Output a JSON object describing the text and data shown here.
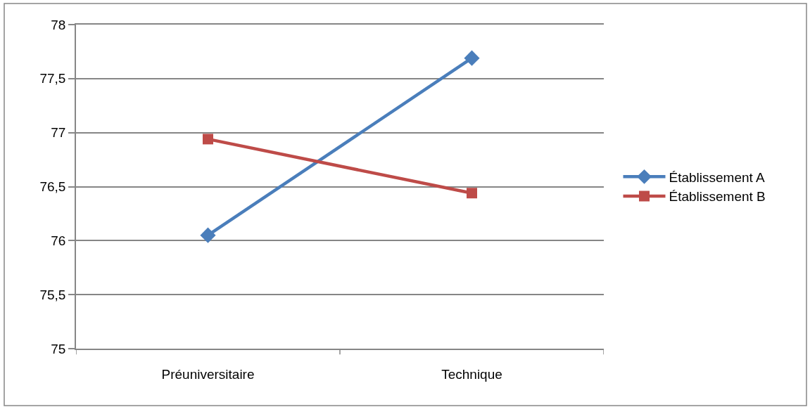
{
  "chart_data": {
    "type": "line",
    "categories": [
      "Préuniversitaire",
      "Technique"
    ],
    "series": [
      {
        "name": "Établissement A",
        "color": "#4a7ebb",
        "marker": "diamond",
        "values": [
          76.05,
          77.69
        ]
      },
      {
        "name": "Établissement B",
        "color": "#be4b48",
        "marker": "square",
        "values": [
          76.94,
          76.44
        ]
      }
    ],
    "ylim": [
      75,
      78
    ],
    "yticks": [
      75,
      {
        "value": 75.5,
        "label": "75,5"
      },
      76,
      {
        "value": 76.5,
        "label": "76,5"
      },
      77,
      {
        "value": 77.5,
        "label": "77,5"
      },
      78
    ],
    "grid": "y",
    "legend": "right",
    "line_style": "solid"
  }
}
